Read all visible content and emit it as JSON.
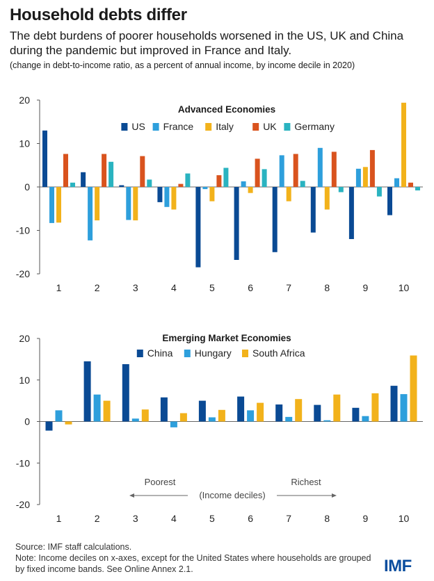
{
  "header": {
    "title": "Household debts differ",
    "subtitle": "The debt burdens of poorer households worsened in the US, UK and China during the pandemic but improved in France and Italy.",
    "note": "(change in debt-to-income ratio, as a percent of annual income, by income decile in 2020)"
  },
  "colors": {
    "US": "#0a4a94",
    "France": "#2e9fdc",
    "Italy": "#f2b21b",
    "UK": "#d9531e",
    "Germany": "#2ab3c0",
    "China": "#0a4a94",
    "Hungary": "#2e9fdc",
    "South Africa": "#f2b21b"
  },
  "chart_data": [
    {
      "type": "bar",
      "title": "Advanced Economies",
      "categories": [
        "1",
        "2",
        "3",
        "4",
        "5",
        "6",
        "7",
        "8",
        "9",
        "10"
      ],
      "ylim": [
        -20,
        20
      ],
      "yticks": [
        "20",
        "10",
        "0",
        "-10",
        "-20"
      ],
      "legend": "top-center",
      "series": [
        {
          "name": "US",
          "values": [
            13,
            3.4,
            0.4,
            -3.5,
            -18.5,
            -16.8,
            -15,
            -10.5,
            -12,
            -6.5
          ]
        },
        {
          "name": "France",
          "values": [
            -8.3,
            -12.3,
            -7.6,
            -4.6,
            -0.5,
            1.3,
            7.3,
            9.0,
            4.2,
            2.0
          ]
        },
        {
          "name": "Italy",
          "values": [
            -8.2,
            -7.7,
            -7.7,
            -5.2,
            -3.3,
            -1.4,
            -3.3,
            -5.2,
            4.6,
            19.4
          ]
        },
        {
          "name": "UK",
          "values": [
            7.6,
            7.6,
            7.1,
            0.7,
            2.7,
            6.5,
            7.6,
            8.1,
            8.5,
            1.0
          ]
        },
        {
          "name": "Germany",
          "values": [
            1.0,
            5.8,
            1.7,
            3.1,
            4.4,
            4.1,
            1.4,
            -1.2,
            -2.2,
            -0.8
          ]
        }
      ]
    },
    {
      "type": "bar",
      "title": "Emerging Market Economies",
      "categories": [
        "1",
        "2",
        "3",
        "4",
        "5",
        "6",
        "7",
        "8",
        "9",
        "10"
      ],
      "ylim": [
        -20,
        20
      ],
      "yticks": [
        "20",
        "10",
        "0",
        "-10",
        "-20"
      ],
      "legend": "top-center",
      "annotations": {
        "poorest": "Poorest",
        "richest": "Richest",
        "axis_label": "(Income deciles)"
      },
      "series": [
        {
          "name": "China",
          "values": [
            -2.2,
            14.5,
            13.8,
            5.8,
            5.0,
            6.0,
            4.1,
            4.0,
            3.3,
            8.6
          ]
        },
        {
          "name": "Hungary",
          "values": [
            2.7,
            6.5,
            0.7,
            -1.4,
            1.0,
            2.7,
            1.1,
            0.3,
            1.3,
            6.6
          ]
        },
        {
          "name": "South Africa",
          "values": [
            -0.7,
            5.0,
            2.9,
            2.0,
            2.8,
            4.5,
            5.4,
            6.5,
            6.8,
            15.9
          ]
        }
      ]
    }
  ],
  "footer": {
    "source": "Source: IMF staff calculations.",
    "note": "Note: Income deciles on x-axes, except for the United States where households are grouped by fixed income bands. See Online Annex 2.1."
  },
  "logo": "IMF"
}
